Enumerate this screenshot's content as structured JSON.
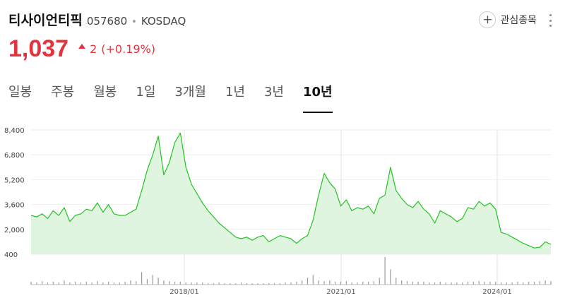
{
  "stock": {
    "name": "티사이언티픽",
    "code": "057680",
    "separator": "•",
    "market": "KOSDAQ",
    "price": "1,037",
    "change": "2",
    "change_rate": "(+0.19%)",
    "direction": "up"
  },
  "watch": {
    "label": "관심종목",
    "icon": "plus-icon"
  },
  "more": {
    "icon": "more-vertical-icon"
  },
  "tabs": [
    {
      "label": "일봉",
      "active": false
    },
    {
      "label": "주봉",
      "active": false
    },
    {
      "label": "월봉",
      "active": false
    },
    {
      "label": "1일",
      "active": false
    },
    {
      "label": "3개월",
      "active": false
    },
    {
      "label": "1년",
      "active": false
    },
    {
      "label": "3년",
      "active": false
    },
    {
      "label": "10년",
      "active": true
    }
  ],
  "colors": {
    "up": "#e5323f",
    "line": "#23c423",
    "area": "#dff5df",
    "volume": "#999999"
  },
  "chart_data": {
    "type": "area",
    "y_ticks": [
      "8,400",
      "6,800",
      "5,200",
      "3,600",
      "2,000",
      "400"
    ],
    "ylim": [
      400,
      8400
    ],
    "x_ticks": [
      "2018/01",
      "2021/01",
      "2024/01"
    ],
    "grid": true,
    "series": [
      {
        "values": [
          2900,
          2800,
          3000,
          2700,
          3200,
          2900,
          3400,
          2500,
          2900,
          3000,
          3300,
          3200,
          3700,
          3100,
          3600,
          3000,
          2900,
          2900,
          3100,
          3300,
          4500,
          5800,
          6800,
          8000,
          5500,
          6300,
          7600,
          8200,
          6000,
          4900,
          4300,
          3700,
          3200,
          2800,
          2400,
          2100,
          1800,
          1500,
          1400,
          1500,
          1300,
          1500,
          1600,
          1200,
          1400,
          1600,
          1500,
          1400,
          1100,
          1400,
          1600,
          2600,
          4200,
          5600,
          5000,
          4600,
          3500,
          3900,
          3200,
          3400,
          3300,
          3500,
          3000,
          4000,
          4200,
          6000,
          4500,
          4000,
          3600,
          3400,
          3800,
          3300,
          3000,
          2400,
          3200,
          3000,
          2800,
          2500,
          2700,
          3400,
          3300,
          3800,
          3500,
          3700,
          3300,
          1800,
          1700,
          1500,
          1300,
          1100,
          950,
          800,
          850,
          1200,
          1037
        ]
      }
    ],
    "volume": [
      4,
      3,
      5,
      3,
      4,
      3,
      6,
      3,
      4,
      3,
      4,
      3,
      5,
      3,
      4,
      3,
      3,
      4,
      6,
      5,
      18,
      8,
      14,
      10,
      6,
      5,
      4,
      4,
      3,
      3,
      3,
      3,
      2,
      2,
      3,
      2,
      2,
      2,
      3,
      2,
      2,
      2,
      2,
      2,
      2,
      2,
      3,
      3,
      4,
      6,
      10,
      14,
      6,
      5,
      6,
      4,
      4,
      5,
      3,
      3,
      4,
      4,
      5,
      10,
      40,
      22,
      10,
      6,
      5,
      4,
      4,
      4,
      3,
      3,
      4,
      3,
      3,
      3,
      3,
      4,
      4,
      5,
      4,
      4,
      4,
      3,
      3,
      3,
      4,
      3,
      4,
      4,
      5,
      6,
      5
    ]
  }
}
